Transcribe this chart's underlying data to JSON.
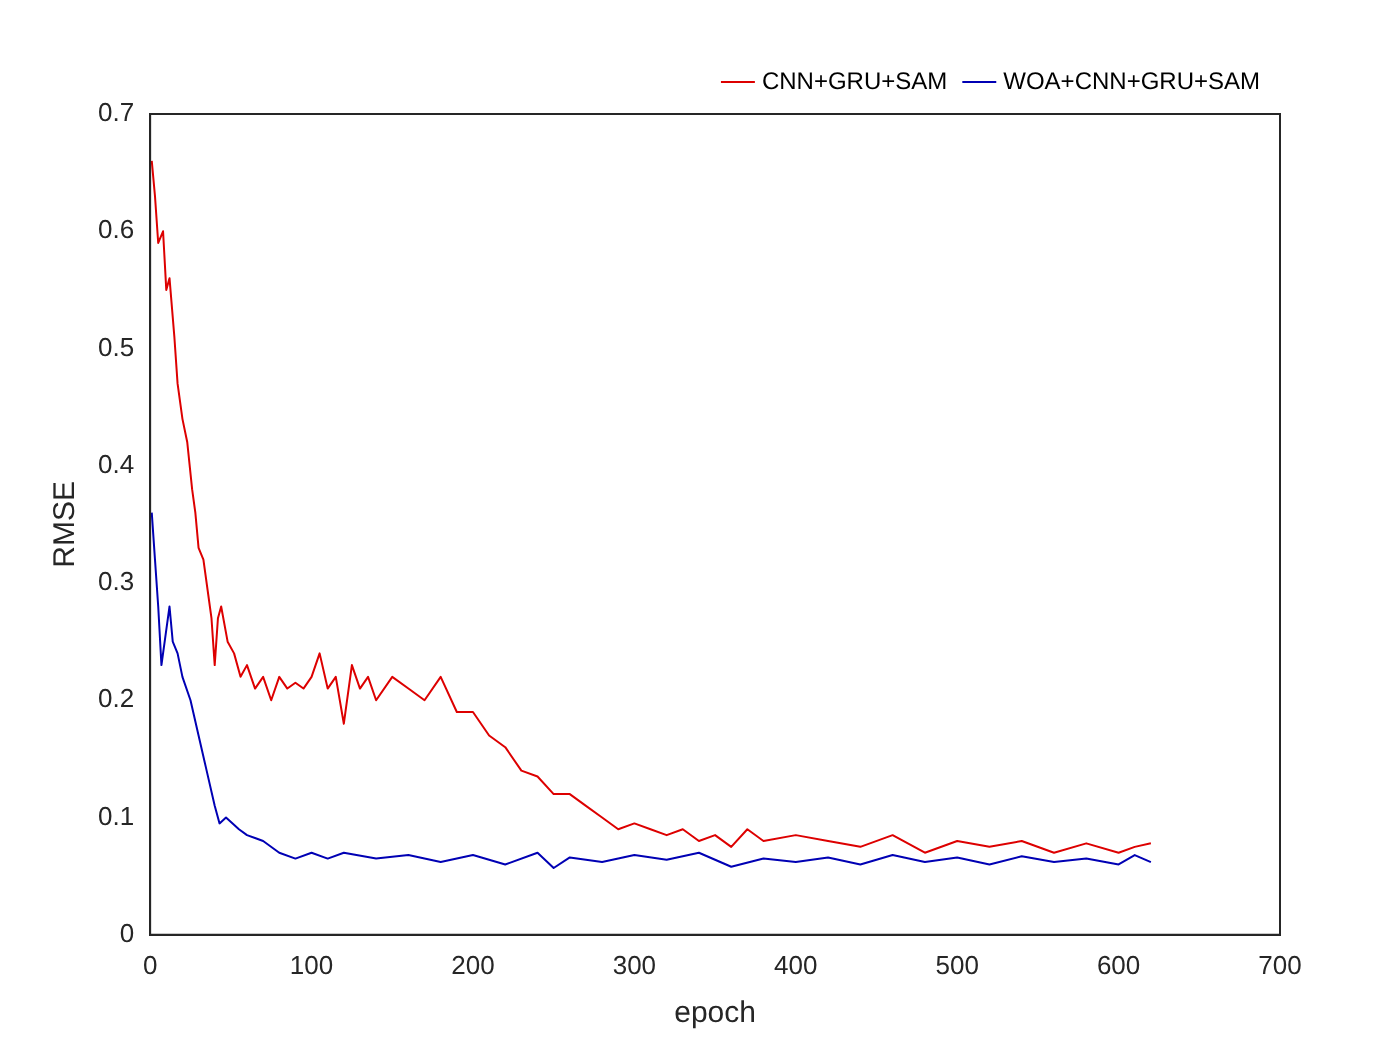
{
  "chart_data": {
    "type": "line",
    "xlabel": "epoch",
    "ylabel": "RMSE",
    "xlim": [
      0,
      700
    ],
    "xticks": [
      0,
      100,
      200,
      300,
      400,
      500,
      600,
      700
    ],
    "ylim": [
      0,
      0.7
    ],
    "yticks": [
      0,
      0.1,
      0.2,
      0.3,
      0.4,
      0.5,
      0.6,
      0.7
    ],
    "grid": false,
    "legend": "top right",
    "marker": "none",
    "line_style": "solid",
    "series": [
      {
        "name": "CNN+GRU+SAM",
        "color": "#dd0000",
        "x": [
          1,
          3,
          5,
          8,
          10,
          12,
          15,
          17,
          20,
          23,
          26,
          28,
          30,
          33,
          36,
          38,
          40,
          42,
          44,
          48,
          52,
          56,
          60,
          65,
          70,
          75,
          80,
          85,
          90,
          95,
          100,
          105,
          110,
          115,
          120,
          125,
          130,
          135,
          140,
          150,
          160,
          170,
          180,
          190,
          200,
          210,
          220,
          230,
          240,
          250,
          260,
          270,
          280,
          290,
          300,
          310,
          320,
          330,
          340,
          350,
          360,
          370,
          380,
          400,
          420,
          440,
          460,
          480,
          500,
          520,
          540,
          560,
          580,
          600,
          610,
          620
        ],
        "values": [
          0.66,
          0.63,
          0.59,
          0.6,
          0.55,
          0.56,
          0.51,
          0.47,
          0.44,
          0.42,
          0.38,
          0.36,
          0.33,
          0.32,
          0.29,
          0.27,
          0.23,
          0.27,
          0.28,
          0.25,
          0.24,
          0.22,
          0.23,
          0.21,
          0.22,
          0.2,
          0.22,
          0.21,
          0.215,
          0.21,
          0.22,
          0.24,
          0.21,
          0.22,
          0.18,
          0.23,
          0.21,
          0.22,
          0.2,
          0.22,
          0.21,
          0.2,
          0.22,
          0.19,
          0.19,
          0.17,
          0.16,
          0.14,
          0.135,
          0.12,
          0.12,
          0.11,
          0.1,
          0.09,
          0.095,
          0.09,
          0.085,
          0.09,
          0.08,
          0.085,
          0.075,
          0.09,
          0.08,
          0.085,
          0.08,
          0.075,
          0.085,
          0.07,
          0.08,
          0.075,
          0.08,
          0.07,
          0.078,
          0.07,
          0.075,
          0.078
        ]
      },
      {
        "name": "WOA+CNN+GRU+SAM",
        "color": "#0000b4",
        "x": [
          1,
          3,
          5,
          7,
          9,
          12,
          14,
          17,
          20,
          25,
          30,
          35,
          40,
          43,
          47,
          55,
          60,
          70,
          80,
          90,
          100,
          110,
          120,
          140,
          160,
          180,
          200,
          220,
          240,
          250,
          260,
          280,
          300,
          320,
          340,
          360,
          380,
          400,
          420,
          440,
          460,
          480,
          500,
          520,
          540,
          560,
          580,
          600,
          610,
          620
        ],
        "values": [
          0.36,
          0.32,
          0.28,
          0.23,
          0.25,
          0.28,
          0.25,
          0.24,
          0.22,
          0.2,
          0.17,
          0.14,
          0.11,
          0.095,
          0.1,
          0.09,
          0.085,
          0.08,
          0.07,
          0.065,
          0.07,
          0.065,
          0.07,
          0.065,
          0.068,
          0.062,
          0.068,
          0.06,
          0.07,
          0.057,
          0.066,
          0.062,
          0.068,
          0.064,
          0.07,
          0.058,
          0.065,
          0.062,
          0.066,
          0.06,
          0.068,
          0.062,
          0.066,
          0.06,
          0.067,
          0.062,
          0.065,
          0.06,
          0.068,
          0.062
        ]
      }
    ]
  }
}
